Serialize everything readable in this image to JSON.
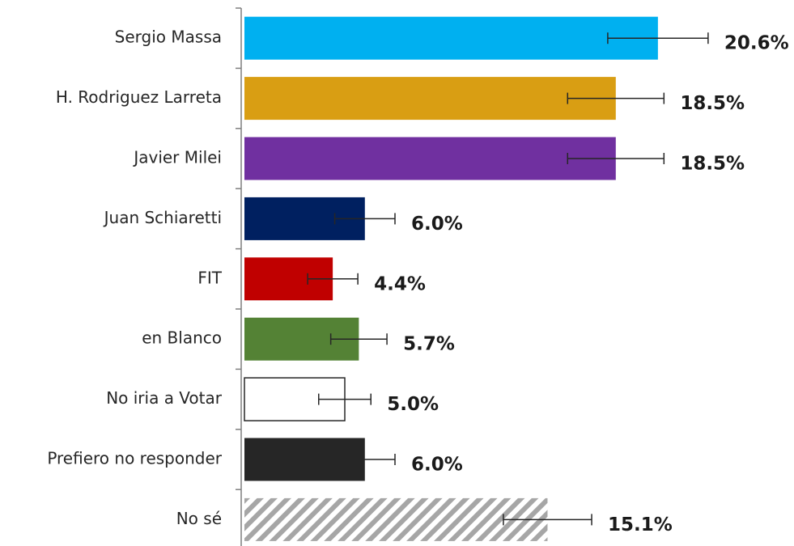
{
  "chart_data": {
    "type": "bar",
    "orientation": "horizontal",
    "categories": [
      "Sergio Massa",
      "H. Rodriguez Larreta",
      "Javier Milei",
      "Juan Schiaretti",
      "FIT",
      "en Blanco",
      "No iria a Votar",
      "Prefiero no responder",
      "No sé"
    ],
    "values": [
      20.6,
      18.5,
      18.5,
      6.0,
      4.4,
      5.7,
      5.0,
      6.0,
      15.1
    ],
    "value_labels": [
      "20.6%",
      "18.5%",
      "18.5%",
      "6.0%",
      "4.4%",
      "5.7%",
      "5.0%",
      "6.0%",
      "15.1%"
    ],
    "errors": [
      2.5,
      2.4,
      2.4,
      1.5,
      1.25,
      1.4,
      1.3,
      1.5,
      2.2
    ],
    "colors": [
      "#00b0f0",
      "#d99e13",
      "#7030a0",
      "#002060",
      "#c00000",
      "#548235",
      "#ffffff",
      "#262626",
      "#a6a6a6"
    ],
    "edge_colors": [
      null,
      null,
      null,
      null,
      null,
      null,
      "#262626",
      null,
      null
    ],
    "hatch": [
      false,
      false,
      false,
      false,
      false,
      false,
      false,
      false,
      true
    ]
  }
}
